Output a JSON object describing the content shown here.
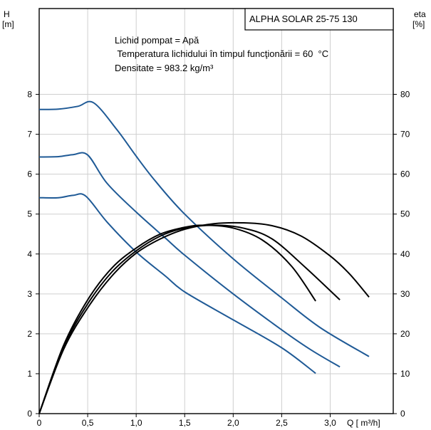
{
  "chart_data": {
    "type": "line",
    "title": "ALPHA SOLAR 25-75  130",
    "annotations": [
      "Lichid pompat = Apă",
      " Temperatura lichidului în timpul funcţionării = 60  °C",
      "Densitate = 983.2  kg/m³"
    ],
    "y_left_label": [
      "H",
      "[m]"
    ],
    "y_right_label": [
      "eta",
      "[%]"
    ],
    "x_label": "Q [ m³/h]",
    "x_ticks": [
      "0",
      "0,5",
      "1,0",
      "1,5",
      "2,0",
      "2,5",
      "3,0"
    ],
    "y_left_ticks": [
      "0",
      "1",
      "2",
      "3",
      "4",
      "5",
      "6",
      "7",
      "8"
    ],
    "y_right_ticks": [
      "0",
      "10",
      "20",
      "30",
      "40",
      "50",
      "60",
      "70",
      "80"
    ],
    "xlim": [
      0,
      3.65
    ],
    "ylim_left": [
      0,
      10.15
    ],
    "ylim_right": [
      0,
      101.5
    ],
    "grid": true,
    "colors": {
      "head": "#1f5a96",
      "efficiency": "#000000"
    },
    "series": [
      {
        "axis": "left",
        "color": "head",
        "points": [
          [
            0,
            7.62
          ],
          [
            0.2,
            7.63
          ],
          [
            0.4,
            7.7
          ],
          [
            0.56,
            7.79
          ],
          [
            0.8,
            7.12
          ],
          [
            1.0,
            6.45
          ],
          [
            1.2,
            5.82
          ],
          [
            1.5,
            5.0
          ],
          [
            2.0,
            3.88
          ],
          [
            2.5,
            2.9
          ],
          [
            2.9,
            2.15
          ],
          [
            3.4,
            1.43
          ]
        ]
      },
      {
        "axis": "left",
        "color": "head",
        "points": [
          [
            0,
            6.43
          ],
          [
            0.2,
            6.44
          ],
          [
            0.35,
            6.49
          ],
          [
            0.5,
            6.48
          ],
          [
            0.7,
            5.77
          ],
          [
            1.0,
            5.05
          ],
          [
            1.3,
            4.4
          ],
          [
            1.5,
            3.97
          ],
          [
            2.0,
            3.0
          ],
          [
            2.5,
            2.1
          ],
          [
            2.8,
            1.6
          ],
          [
            3.1,
            1.17
          ]
        ]
      },
      {
        "axis": "left",
        "color": "head",
        "points": [
          [
            0,
            5.41
          ],
          [
            0.2,
            5.41
          ],
          [
            0.35,
            5.47
          ],
          [
            0.48,
            5.45
          ],
          [
            0.7,
            4.8
          ],
          [
            1.0,
            4.05
          ],
          [
            1.3,
            3.45
          ],
          [
            1.5,
            3.05
          ],
          [
            2.0,
            2.35
          ],
          [
            2.5,
            1.65
          ],
          [
            2.85,
            1.01
          ]
        ]
      },
      {
        "axis": "right",
        "color": "efficiency",
        "points": [
          [
            0,
            0
          ],
          [
            0.25,
            17
          ],
          [
            0.5,
            28.5
          ],
          [
            0.75,
            36.5
          ],
          [
            1.0,
            41.5
          ],
          [
            1.25,
            45
          ],
          [
            1.5,
            46.7
          ],
          [
            1.7,
            47.2
          ],
          [
            2.0,
            46.5
          ],
          [
            2.3,
            43.5
          ],
          [
            2.6,
            37
          ],
          [
            2.85,
            28.2
          ]
        ]
      },
      {
        "axis": "right",
        "color": "efficiency",
        "points": [
          [
            0,
            0
          ],
          [
            0.25,
            16.5
          ],
          [
            0.5,
            27.5
          ],
          [
            0.75,
            35.5
          ],
          [
            1.0,
            40.8
          ],
          [
            1.25,
            44.5
          ],
          [
            1.5,
            46.5
          ],
          [
            1.8,
            47.2
          ],
          [
            2.1,
            46.5
          ],
          [
            2.4,
            43.8
          ],
          [
            2.75,
            36.5
          ],
          [
            3.1,
            28.5
          ]
        ]
      },
      {
        "axis": "right",
        "color": "efficiency",
        "points": [
          [
            0,
            0
          ],
          [
            0.25,
            16
          ],
          [
            0.5,
            26.5
          ],
          [
            0.75,
            34.5
          ],
          [
            1.0,
            40.2
          ],
          [
            1.25,
            43.8
          ],
          [
            1.5,
            46.2
          ],
          [
            1.8,
            47.6
          ],
          [
            2.1,
            47.8
          ],
          [
            2.4,
            47.1
          ],
          [
            2.7,
            44.5
          ],
          [
            3.0,
            39.5
          ],
          [
            3.2,
            35
          ],
          [
            3.4,
            29.2
          ]
        ]
      }
    ]
  }
}
